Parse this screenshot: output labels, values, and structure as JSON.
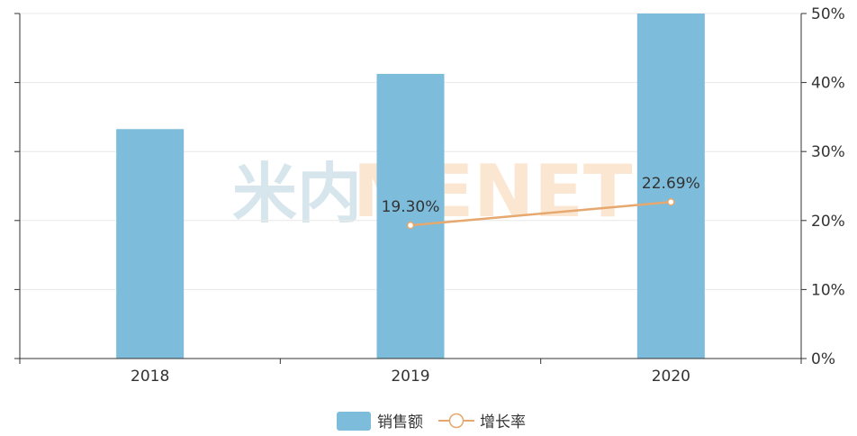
{
  "colors": {
    "bar": "#7dbcda",
    "line": "#e6a86f",
    "axis": "#333333",
    "grid": "#e8e8e8",
    "watermark_cn": "#d7e6ec",
    "watermark_en": "#fbe6d2"
  },
  "watermark": {
    "cn": "米内",
    "en": "MENET"
  },
  "legend": {
    "bar_label": "销售额",
    "line_label": "增长率"
  },
  "chart_data": {
    "type": "bar",
    "categories": [
      "2018",
      "2019",
      "2020"
    ],
    "series": [
      {
        "name": "销售额",
        "type": "bar",
        "axis": "left",
        "values": [
          0.665,
          0.825,
          1.0
        ]
      },
      {
        "name": "增长率",
        "type": "line",
        "axis": "right",
        "values": [
          null,
          19.3,
          22.69
        ],
        "labels": [
          "",
          "19.30%",
          "22.69%"
        ]
      }
    ],
    "y_left": {
      "ylim": [
        0,
        1.0
      ],
      "ticks_shown": false
    },
    "y_right": {
      "ylim": [
        0,
        50
      ],
      "tick_labels": [
        "0%",
        "10%",
        "20%",
        "30%",
        "40%",
        "50%"
      ]
    },
    "grid": true,
    "legend_position": "bottom-center",
    "title": "",
    "xlabel": "",
    "ylabel": ""
  }
}
